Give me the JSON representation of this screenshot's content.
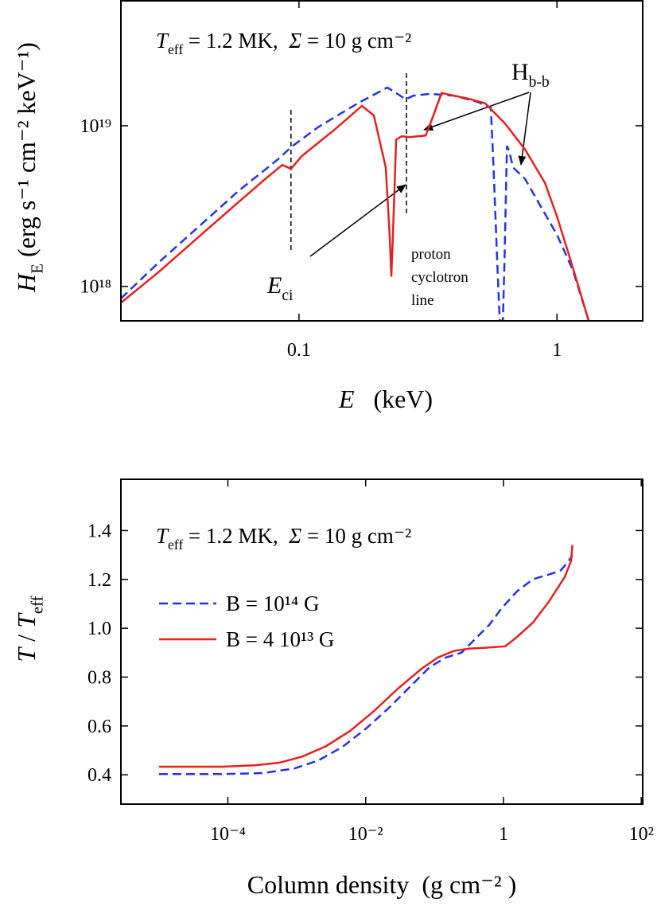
{
  "chart_data": [
    {
      "type": "line",
      "x_scale": "log",
      "y_scale": "log",
      "xlim": [
        0.0204,
        2.15
      ],
      "ylim": [
        6.1e+17,
        6e+19
      ],
      "xticks": [
        0.1,
        1
      ],
      "yticks": [
        {
          "value": 1e+18,
          "label": "10¹⁸"
        },
        {
          "value": 1e+19,
          "label": "10¹⁹"
        }
      ],
      "x_label": [
        {
          "text": "E",
          "italic": true
        },
        {
          "text": "   (keV)"
        }
      ],
      "y_label": [
        {
          "text": "H",
          "italic": true
        },
        {
          "text": "E",
          "sub": true
        },
        {
          "text": " (erg s⁻¹ cm⁻² keV⁻¹)"
        }
      ],
      "annotations": {
        "header": [
          {
            "text": "T",
            "italic": true
          },
          {
            "text": "eff",
            "sub": true
          },
          {
            "text": " = 1.2 MK,  "
          },
          {
            "text": "Σ",
            "italic": true
          },
          {
            "text": " = 10 g cm⁻²"
          }
        ],
        "hbb": [
          {
            "text": "H"
          },
          {
            "text": "b-b",
            "sub": true
          }
        ],
        "eci": [
          {
            "text": "E",
            "italic": true
          },
          {
            "text": "ci",
            "sub": true
          }
        ],
        "proton_line": [
          "proton",
          "cyclotron",
          "line"
        ]
      },
      "vlines": [
        0.0931,
        0.261
      ],
      "series": [
        {
          "color": "#2233e6",
          "dashed": true,
          "x": [
            0.0204,
            0.0286,
            0.0408,
            0.0583,
            0.0831,
            0.0931,
            0.1186,
            0.169,
            0.22,
            0.241,
            0.259,
            0.278,
            0.321,
            0.397,
            0.491,
            0.554,
            0.566,
            0.587,
            0.6,
            0.617,
            0.626,
            0.64,
            0.653,
            0.676,
            0.701,
            0.753,
            0.867,
            1.0,
            1.153,
            1.328
          ],
          "values": [
            8.4e+17,
            1.41e+18,
            2.35e+18,
            3.93e+18,
            6.2e+18,
            7.35e+18,
            9.8e+18,
            1.38e+19,
            1.73e+19,
            1.58e+19,
            1.46e+19,
            1.54e+19,
            1.58e+19,
            1.54e+19,
            1.41e+19,
            1.3e+19,
            6.2e+18,
            1.41e+18,
            6.1e+17,
            6.1e+17,
            1.41e+18,
            7.5e+18,
            6.95e+18,
            5.5e+18,
            5.2e+18,
            4.66e+18,
            3.13e+18,
            2.1e+18,
            1.26e+18,
            6.1e+17
          ]
        },
        {
          "color": "#e8201f",
          "dashed": false,
          "x": [
            0.0204,
            0.0286,
            0.0408,
            0.0583,
            0.0721,
            0.0861,
            0.0931,
            0.1028,
            0.1367,
            0.1754,
            0.195,
            0.217,
            0.225,
            0.228,
            0.231,
            0.235,
            0.238,
            0.25,
            0.269,
            0.31,
            0.332,
            0.357,
            0.457,
            0.527,
            0.63,
            0.753,
            0.899,
            1.0,
            1.112,
            1.238,
            1.328
          ],
          "values": [
            7.9e+17,
            1.23e+18,
            2.03e+18,
            3.35e+18,
            4.5e+18,
            5.7e+18,
            5.4e+18,
            6.5e+18,
            9.4e+18,
            1.33e+19,
            1.16e+19,
            5.5e+18,
            1.98e+18,
            1.15e+18,
            1.98e+18,
            4.4e+18,
            8.2e+18,
            8.6e+18,
            8.5e+18,
            8.7e+18,
            1.16e+19,
            1.6e+19,
            1.47e+19,
            1.38e+19,
            1.03e+19,
            7.1e+18,
            4.4e+18,
            2.73e+18,
            1.58e+18,
            8.9e+17,
            6.1e+17
          ]
        }
      ]
    },
    {
      "type": "line",
      "x_scale": "log",
      "xlim": [
        2.8e-06,
        105
      ],
      "ylim": [
        0.28,
        1.61
      ],
      "xticks": [
        {
          "value": 0.0001,
          "label": "10⁻⁴"
        },
        {
          "value": 0.01,
          "label": "10⁻²"
        },
        1,
        {
          "value": 100,
          "label": "10²"
        }
      ],
      "yticks": [
        0.4,
        0.6,
        0.8,
        {
          "value": 1.0,
          "label": "1.0"
        },
        1.2,
        1.4
      ],
      "x_label": [
        {
          "text": "Column density  (g cm⁻² )"
        }
      ],
      "y_label": [
        {
          "text": "T",
          "italic": true
        },
        {
          "text": " / "
        },
        {
          "text": "T",
          "italic": true
        },
        {
          "text": "eff",
          "sub": true
        }
      ],
      "annotations": {
        "header": [
          {
            "text": "T",
            "italic": true
          },
          {
            "text": "eff",
            "sub": true
          },
          {
            "text": " = 1.2 MK,  "
          },
          {
            "text": "Σ",
            "italic": true
          },
          {
            "text": " = 10 g cm⁻²"
          }
        ]
      },
      "legend": "upper left",
      "series": [
        {
          "name": "B = 10¹⁴ G",
          "color": "#2233e6",
          "dashed": true,
          "x": [
            1e-05,
            8.5e-05,
            0.00032,
            0.00093,
            0.00206,
            0.00458,
            0.0102,
            0.0225,
            0.05,
            0.085,
            0.145,
            0.246,
            0.418,
            0.623,
            0.93,
            1.58,
            2.69,
            4.56,
            6.8,
            8.87,
            10
          ],
          "values": [
            0.403,
            0.403,
            0.407,
            0.426,
            0.459,
            0.514,
            0.59,
            0.678,
            0.776,
            0.841,
            0.88,
            0.9,
            0.965,
            1.014,
            1.08,
            1.152,
            1.201,
            1.22,
            1.237,
            1.276,
            1.299
          ]
        },
        {
          "name": "B = 4 10¹³ G",
          "color": "#e8201f",
          "dashed": false,
          "x": [
            1e-05,
            8.5e-05,
            0.000247,
            0.00055,
            0.00121,
            0.00269,
            0.00597,
            0.0132,
            0.0294,
            0.0652,
            0.111,
            0.189,
            0.321,
            0.546,
            1.06,
            1.58,
            2.69,
            4.56,
            7.76,
            9.6,
            10
          ],
          "values": [
            0.433,
            0.433,
            0.439,
            0.449,
            0.475,
            0.518,
            0.58,
            0.661,
            0.753,
            0.835,
            0.88,
            0.907,
            0.917,
            0.92,
            0.926,
            0.965,
            1.024,
            1.109,
            1.21,
            1.276,
            1.341
          ]
        }
      ]
    }
  ]
}
